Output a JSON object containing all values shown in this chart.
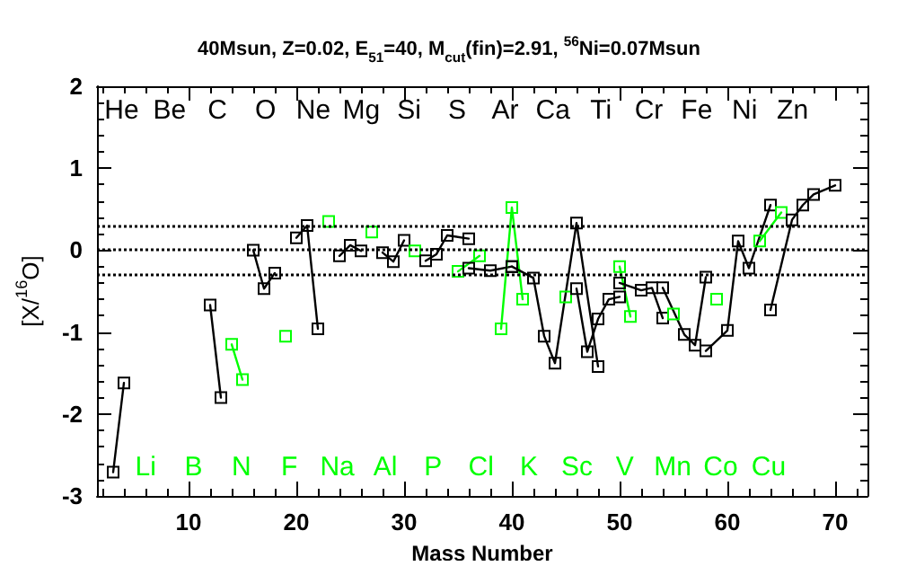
{
  "chart_data": {
    "type": "line",
    "title": "40Msun, Z=0.02, E$_{51}$=40, M$_{cut}$(fin)=2.91, $^{56}$Ni=0.07Msun",
    "xlabel": "Mass Number",
    "ylabel": "[X/$^{16}$O]",
    "xlim": [
      1.5,
      73
    ],
    "ylim": [
      -3,
      2
    ],
    "xticks": [
      {
        "value": 2,
        "label": null
      },
      {
        "value": 4,
        "label": null
      },
      {
        "value": 6,
        "label": null
      },
      {
        "value": 8,
        "label": null
      },
      10,
      {
        "value": 12,
        "label": null
      },
      {
        "value": 14,
        "label": null
      },
      {
        "value": 16,
        "label": null
      },
      {
        "value": 18,
        "label": null
      },
      20,
      {
        "value": 22,
        "label": null
      },
      {
        "value": 24,
        "label": null
      },
      {
        "value": 26,
        "label": null
      },
      {
        "value": 28,
        "label": null
      },
      30,
      {
        "value": 32,
        "label": null
      },
      {
        "value": 34,
        "label": null
      },
      {
        "value": 36,
        "label": null
      },
      {
        "value": 38,
        "label": null
      },
      40,
      {
        "value": 42,
        "label": null
      },
      {
        "value": 44,
        "label": null
      },
      {
        "value": 46,
        "label": null
      },
      {
        "value": 48,
        "label": null
      },
      50,
      {
        "value": 52,
        "label": null
      },
      {
        "value": 54,
        "label": null
      },
      {
        "value": 56,
        "label": null
      },
      {
        "value": 58,
        "label": null
      },
      60,
      {
        "value": 62,
        "label": null
      },
      {
        "value": 64,
        "label": null
      },
      {
        "value": 66,
        "label": null
      },
      {
        "value": 68,
        "label": null
      },
      70,
      {
        "value": 72,
        "label": null
      }
    ],
    "yticks": [
      -3,
      {
        "value": -2.8,
        "label": null
      },
      {
        "value": -2.6,
        "label": null
      },
      {
        "value": -2.4,
        "label": null
      },
      {
        "value": -2.2,
        "label": null
      },
      -2,
      {
        "value": -1.8,
        "label": null
      },
      {
        "value": -1.6,
        "label": null
      },
      {
        "value": -1.4,
        "label": null
      },
      {
        "value": -1.2,
        "label": null
      },
      -1,
      {
        "value": -0.8,
        "label": null
      },
      {
        "value": -0.6,
        "label": null
      },
      {
        "value": -0.4,
        "label": null
      },
      {
        "value": -0.2,
        "label": null
      },
      0,
      {
        "value": 0.2,
        "label": null
      },
      {
        "value": 0.4,
        "label": null
      },
      {
        "value": 0.6,
        "label": null
      },
      {
        "value": 0.8,
        "label": null
      },
      1,
      {
        "value": 1.2,
        "label": null
      },
      {
        "value": 1.4,
        "label": null
      },
      {
        "value": 1.6,
        "label": null
      },
      {
        "value": 1.8,
        "label": null
      },
      2
    ],
    "grid": false,
    "marker": "square",
    "line_style": "solid",
    "series": [
      {
        "color": "#000000",
        "x": [
          3,
          4
        ],
        "values": [
          -2.71,
          -1.62
        ]
      },
      {
        "color": "#000000",
        "x": [
          12,
          13
        ],
        "values": [
          -0.67,
          -1.8
        ]
      },
      {
        "color": "#00ff00",
        "x": [
          14,
          15
        ],
        "values": [
          -1.15,
          -1.58
        ]
      },
      {
        "color": "#000000",
        "x": [
          16,
          17,
          18
        ],
        "values": [
          0.0,
          -0.47,
          -0.28
        ]
      },
      {
        "color": "#00ff00",
        "x": [
          19
        ],
        "values": [
          -1.05
        ]
      },
      {
        "color": "#000000",
        "x": [
          20,
          21,
          22
        ],
        "values": [
          0.15,
          0.3,
          -0.96
        ]
      },
      {
        "color": "#00ff00",
        "x": [
          23
        ],
        "values": [
          0.35
        ]
      },
      {
        "color": "#000000",
        "x": [
          24,
          25,
          26
        ],
        "values": [
          -0.07,
          0.06,
          -0.01
        ]
      },
      {
        "color": "#00ff00",
        "x": [
          27
        ],
        "values": [
          0.22
        ]
      },
      {
        "color": "#000000",
        "x": [
          28,
          29,
          30
        ],
        "values": [
          -0.03,
          -0.14,
          0.12
        ]
      },
      {
        "color": "#00ff00",
        "x": [
          31
        ],
        "values": [
          -0.01
        ]
      },
      {
        "color": "#000000",
        "x": [
          32,
          33,
          34,
          36
        ],
        "values": [
          -0.13,
          -0.05,
          0.18,
          0.14
        ]
      },
      {
        "color": "#00ff00",
        "x": [
          35,
          37
        ],
        "values": [
          -0.26,
          -0.07
        ]
      },
      {
        "color": "#000000",
        "x": [
          36,
          38,
          40
        ],
        "values": [
          -0.22,
          -0.25,
          -0.2
        ]
      },
      {
        "color": "#00ff00",
        "x": [
          39,
          40,
          41
        ],
        "values": [
          -0.96,
          0.52,
          -0.6
        ]
      },
      {
        "color": "#000000",
        "x": [
          40,
          42,
          43,
          44,
          46,
          48
        ],
        "values": [
          -0.2,
          -0.34,
          -1.05,
          -1.38,
          0.33,
          -1.42
        ]
      },
      {
        "color": "#00ff00",
        "x": [
          45
        ],
        "values": [
          -0.57
        ]
      },
      {
        "color": "#000000",
        "x": [
          46,
          47,
          48,
          49,
          50
        ],
        "values": [
          -0.47,
          -1.24,
          -0.84,
          -0.6,
          -0.57
        ]
      },
      {
        "color": "#00ff00",
        "x": [
          50,
          51
        ],
        "values": [
          -0.2,
          -0.81
        ]
      },
      {
        "color": "#000000",
        "x": [
          50,
          52,
          53,
          54
        ],
        "values": [
          -0.4,
          -0.49,
          -0.46,
          -0.83
        ]
      },
      {
        "color": "#00ff00",
        "x": [
          55
        ],
        "values": [
          -0.78
        ]
      },
      {
        "color": "#000000",
        "x": [
          54,
          56,
          57,
          58
        ],
        "values": [
          -0.46,
          -1.03,
          -1.16,
          -0.33
        ]
      },
      {
        "color": "#00ff00",
        "x": [
          59
        ],
        "values": [
          -0.6
        ]
      },
      {
        "color": "#000000",
        "x": [
          58,
          60,
          61,
          62,
          64
        ],
        "values": [
          -1.23,
          -0.98,
          0.11,
          -0.22,
          0.55
        ]
      },
      {
        "color": "#00ff00",
        "x": [
          63,
          65
        ],
        "values": [
          0.11,
          0.46
        ]
      },
      {
        "color": "#000000",
        "x": [
          64,
          66,
          67,
          68,
          70
        ],
        "values": [
          -0.73,
          0.37,
          0.55,
          0.68,
          0.79
        ]
      }
    ],
    "ref_lines": [
      {
        "axis": "y",
        "value": 0.3,
        "color": "#000000",
        "line_style": "dotted"
      },
      {
        "axis": "y",
        "value": 0,
        "color": "#000000",
        "line_style": "dotted"
      },
      {
        "axis": "y",
        "value": -0.3,
        "color": "#000000",
        "line_style": "dotted"
      }
    ],
    "annotations": [
      "He",
      "Li",
      "Be",
      "B",
      "C",
      "N",
      "O",
      "F",
      "Ne",
      "Na",
      "Mg",
      "Al",
      "Si",
      "P",
      "S",
      "Cl",
      "Ar",
      "K",
      "Ca",
      "Sc",
      "Ti",
      "V",
      "Cr",
      "Mn",
      "Fe",
      "Co",
      "Ni",
      "Cu",
      "Zn"
    ]
  }
}
